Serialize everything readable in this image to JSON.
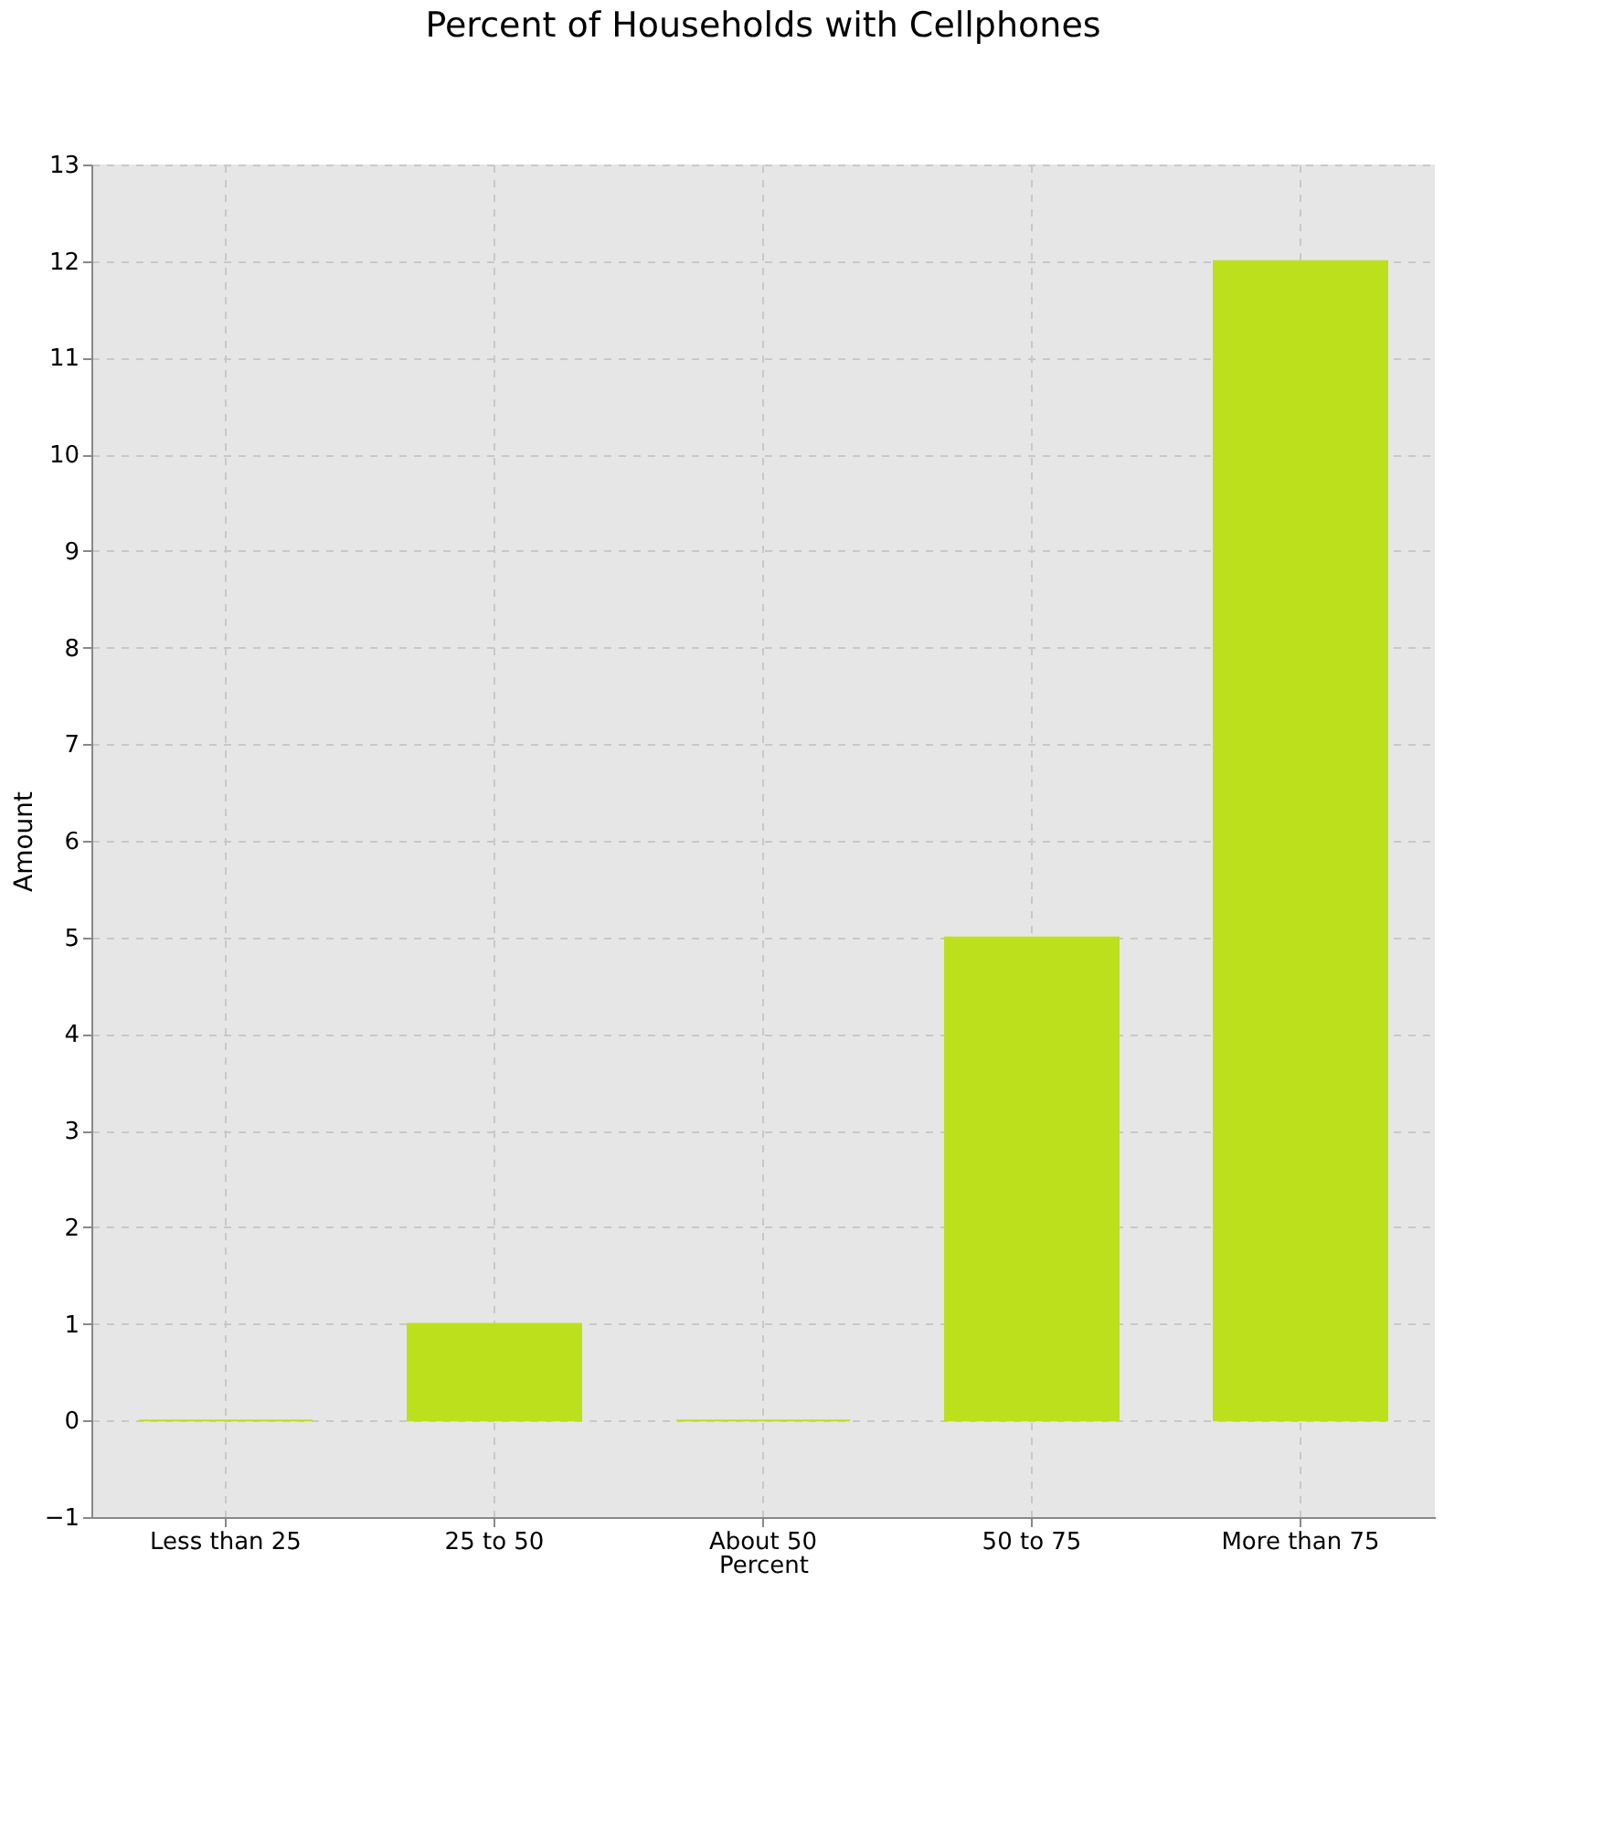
{
  "chart_data": {
    "type": "bar",
    "title": "Percent of Households with Cellphones",
    "xlabel": "Percent",
    "ylabel": "Amount",
    "categories": [
      "Less than 25",
      "25 to 50",
      "About 50",
      "50 to 75",
      "More than 75"
    ],
    "values": [
      0,
      1,
      0,
      5,
      12
    ],
    "color": "#bde01d",
    "ylim": [
      -1,
      13
    ],
    "yticks": [
      -1,
      0,
      1,
      2,
      3,
      4,
      5,
      6,
      7,
      8,
      9,
      10,
      11,
      12,
      13
    ],
    "grid": true
  }
}
